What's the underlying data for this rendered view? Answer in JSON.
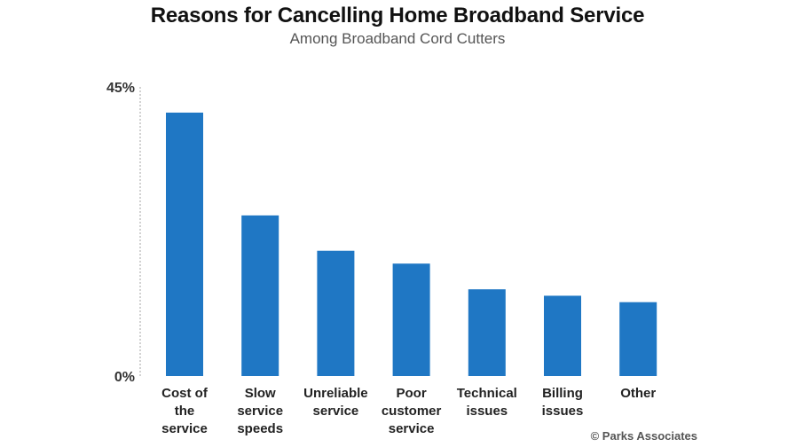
{
  "chart_data": {
    "type": "bar",
    "title": "Reasons for Cancelling Home Broadband Service",
    "subtitle": "Among Broadband Cord Cutters",
    "xlabel": "",
    "ylabel": "",
    "ylim": [
      0,
      45
    ],
    "ytick_labels": [
      "45%",
      "0%"
    ],
    "categories": [
      [
        "Cost of",
        "the",
        "service"
      ],
      [
        "Slow",
        "service",
        "speeds"
      ],
      [
        "Unreliable",
        "service"
      ],
      [
        "Poor",
        "customer",
        "service"
      ],
      [
        "Technical",
        "issues"
      ],
      [
        "Billing",
        "issues"
      ],
      [
        "Other"
      ]
    ],
    "values": [
      41,
      25,
      19.5,
      17.5,
      13.5,
      12.5,
      11.5
    ],
    "bar_color": "#1f77c4",
    "grid": false,
    "legend": "none"
  },
  "credit": "© Parks Associates"
}
